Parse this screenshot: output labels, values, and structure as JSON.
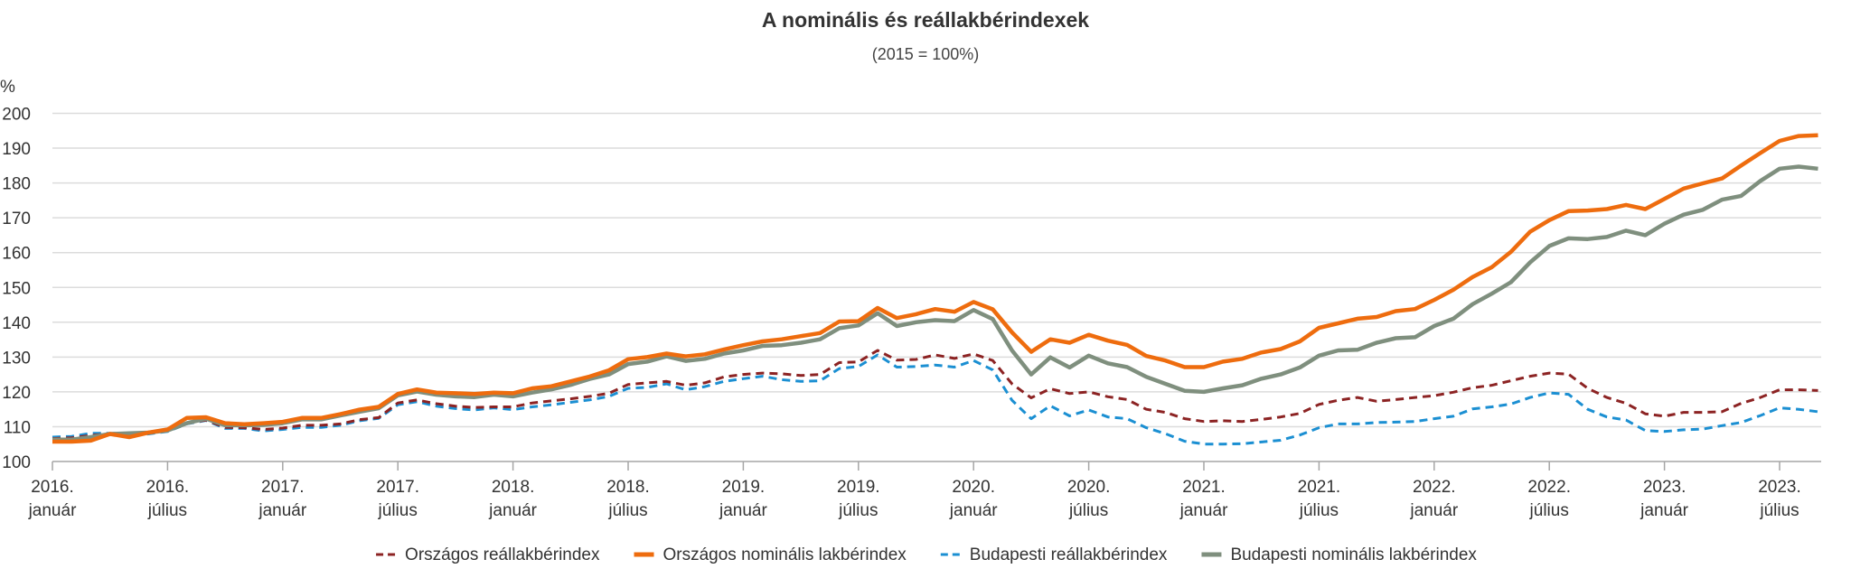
{
  "chart_data": {
    "type": "line",
    "title": "A nominális és reállakbérindexek",
    "subtitle": "(2015 = 100%)",
    "ylabel": "%",
    "xlabel": "",
    "ylim": [
      100,
      200
    ],
    "yticks": [
      100,
      110,
      120,
      130,
      140,
      150,
      160,
      170,
      180,
      190,
      200
    ],
    "grid": true,
    "legend_position": "bottom",
    "x_start": "2016-01",
    "x_frequency": "monthly",
    "x_tick_labels": [
      {
        "month_index": 0,
        "line1": "2016.",
        "line2": "január"
      },
      {
        "month_index": 6,
        "line1": "2016.",
        "line2": "július"
      },
      {
        "month_index": 12,
        "line1": "2017.",
        "line2": "január"
      },
      {
        "month_index": 18,
        "line1": "2017.",
        "line2": "július"
      },
      {
        "month_index": 24,
        "line1": "2018.",
        "line2": "január"
      },
      {
        "month_index": 30,
        "line1": "2018.",
        "line2": "július"
      },
      {
        "month_index": 36,
        "line1": "2019.",
        "line2": "január"
      },
      {
        "month_index": 42,
        "line1": "2019.",
        "line2": "július"
      },
      {
        "month_index": 48,
        "line1": "2020.",
        "line2": "január"
      },
      {
        "month_index": 54,
        "line1": "2020.",
        "line2": "július"
      },
      {
        "month_index": 60,
        "line1": "2021.",
        "line2": "január"
      },
      {
        "month_index": 66,
        "line1": "2021.",
        "line2": "július"
      },
      {
        "month_index": 72,
        "line1": "2022.",
        "line2": "január"
      },
      {
        "month_index": 78,
        "line1": "2022.",
        "line2": "július"
      },
      {
        "month_index": 84,
        "line1": "2023.",
        "line2": "január"
      },
      {
        "month_index": 90,
        "line1": "2023.",
        "line2": "július"
      }
    ],
    "series": [
      {
        "name": "Országos reállakbérindex",
        "color": "#8c2323",
        "style": "dashed",
        "values": [
          106.6,
          106.8,
          107.5,
          108.0,
          107.5,
          108.1,
          108.8,
          110.9,
          111.9,
          109.8,
          109.7,
          109.2,
          109.6,
          110.4,
          110.4,
          110.8,
          112.0,
          112.6,
          116.8,
          117.7,
          116.6,
          115.9,
          115.5,
          115.7,
          115.7,
          116.8,
          117.4,
          118.0,
          118.7,
          119.6,
          122.1,
          122.6,
          123.0,
          121.9,
          122.6,
          124.3,
          125.0,
          125.4,
          125.2,
          124.7,
          125.0,
          128.4,
          128.6,
          131.9,
          129.1,
          129.3,
          130.6,
          129.6,
          130.9,
          129.0,
          122.3,
          118.3,
          120.9,
          119.5,
          120.0,
          118.6,
          117.8,
          115.0,
          114.1,
          112.3,
          111.5,
          111.7,
          111.5,
          112.1,
          112.8,
          113.8,
          116.4,
          117.6,
          118.4,
          117.3,
          117.8,
          118.4,
          118.9,
          119.9,
          121.2,
          121.9,
          123.2,
          124.5,
          125.4,
          125.1,
          121.0,
          118.4,
          116.7,
          113.7,
          113.0,
          114.1,
          114.1,
          114.3,
          116.7,
          118.4,
          120.6,
          120.6,
          120.4
        ]
      },
      {
        "name": "Országos nominális lakbérindex",
        "color": "#ee6c0e",
        "style": "solid",
        "values": [
          105.7,
          105.7,
          106.0,
          107.9,
          107.0,
          108.3,
          109.2,
          112.5,
          112.7,
          111.0,
          110.7,
          111.0,
          111.4,
          112.5,
          112.5,
          113.6,
          114.9,
          115.7,
          119.4,
          120.7,
          119.8,
          119.6,
          119.4,
          119.8,
          119.6,
          121.0,
          121.6,
          123.0,
          124.4,
          126.2,
          129.4,
          130.0,
          131.0,
          130.2,
          130.8,
          132.2,
          133.4,
          134.5,
          135.1,
          136.0,
          136.9,
          140.2,
          140.3,
          144.1,
          141.2,
          142.3,
          143.8,
          143.0,
          145.8,
          143.7,
          137.1,
          131.5,
          135.1,
          134.1,
          136.4,
          134.7,
          133.5,
          130.3,
          129.0,
          127.1,
          127.1,
          128.7,
          129.5,
          131.3,
          132.3,
          134.5,
          138.4,
          139.7,
          141.0,
          141.5,
          143.2,
          143.8,
          146.4,
          149.3,
          153.0,
          155.8,
          160.2,
          166.0,
          169.3,
          171.9,
          172.1,
          172.5,
          173.7,
          172.5,
          175.4,
          178.4,
          179.9,
          181.3,
          185.0,
          188.6,
          192.1,
          193.5,
          193.7
        ]
      },
      {
        "name": "Budapesti reállakbérindex",
        "color": "#1b8fd2",
        "style": "dashed",
        "values": [
          107.0,
          107.2,
          108.1,
          108.1,
          107.5,
          107.9,
          108.6,
          110.8,
          111.8,
          109.5,
          109.5,
          108.8,
          109.2,
          109.8,
          109.8,
          110.4,
          111.7,
          112.4,
          116.3,
          117.2,
          115.9,
          115.2,
          114.8,
          115.4,
          114.9,
          115.7,
          116.3,
          117.0,
          117.7,
          118.7,
          121.0,
          121.3,
          122.3,
          120.6,
          121.5,
          123.0,
          123.8,
          124.5,
          123.5,
          123.0,
          123.2,
          126.7,
          127.3,
          130.6,
          127.1,
          127.3,
          127.7,
          127.1,
          129.0,
          126.3,
          117.6,
          112.3,
          116.0,
          113.1,
          114.8,
          112.8,
          112.3,
          109.7,
          108.0,
          105.8,
          105.0,
          105.0,
          105.1,
          105.6,
          106.1,
          107.6,
          109.7,
          110.8,
          110.8,
          111.2,
          111.3,
          111.5,
          112.3,
          113.0,
          115.1,
          115.7,
          116.5,
          118.4,
          119.7,
          119.3,
          115.0,
          112.8,
          111.9,
          108.9,
          108.6,
          109.1,
          109.3,
          110.3,
          111.2,
          113.2,
          115.4,
          115.0,
          114.3
        ]
      },
      {
        "name": "Budapesti nominális lakbérindex",
        "color": "#7f8f7e",
        "style": "solid",
        "values": [
          106.3,
          106.3,
          107.0,
          107.9,
          108.1,
          108.3,
          108.9,
          111.0,
          112.3,
          110.4,
          110.4,
          110.5,
          111.0,
          112.1,
          112.1,
          113.2,
          114.3,
          115.3,
          119.0,
          120.1,
          119.2,
          118.7,
          118.5,
          119.2,
          118.7,
          119.8,
          120.7,
          122.0,
          123.7,
          125.0,
          128.0,
          128.7,
          130.2,
          128.9,
          129.5,
          131.0,
          131.9,
          133.2,
          133.4,
          134.1,
          135.1,
          138.3,
          139.1,
          142.6,
          138.9,
          140.0,
          140.6,
          140.3,
          143.5,
          140.9,
          131.9,
          125.0,
          129.9,
          127.0,
          130.4,
          128.2,
          127.1,
          124.3,
          122.3,
          120.3,
          120.0,
          121.0,
          121.9,
          123.8,
          125.0,
          127.0,
          130.4,
          131.9,
          132.1,
          134.1,
          135.4,
          135.7,
          138.9,
          141.0,
          145.2,
          148.2,
          151.5,
          157.2,
          161.9,
          164.1,
          163.9,
          164.5,
          166.3,
          165.0,
          168.3,
          170.9,
          172.3,
          175.2,
          176.3,
          180.6,
          184.1,
          184.7,
          184.1
        ]
      }
    ]
  }
}
